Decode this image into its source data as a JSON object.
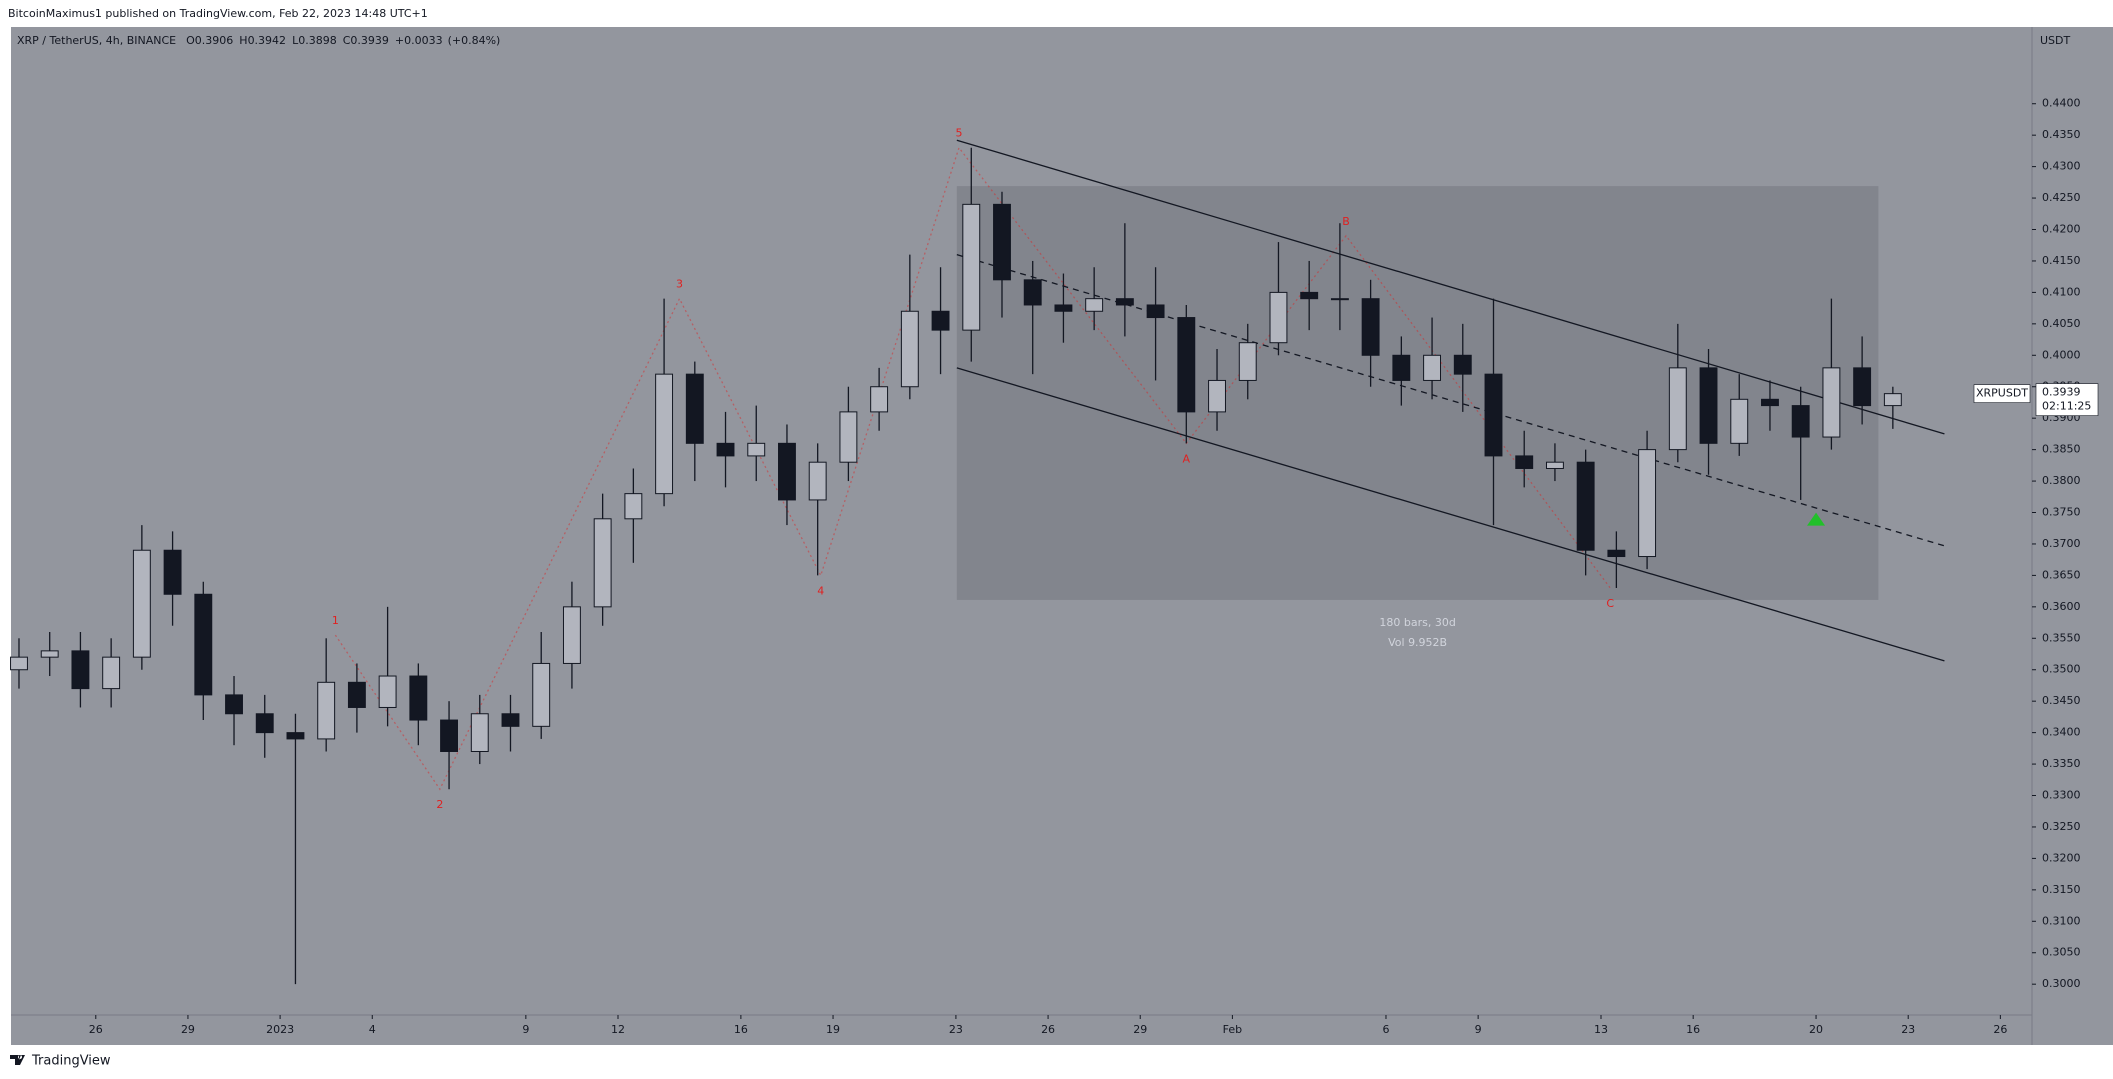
{
  "header": {
    "published": "BitcoinMaximus1 published on TradingView.com, Feb 22, 2023 14:48 UTC+1"
  },
  "chart_data": {
    "type": "candlestick",
    "title": "XRP / TetherUS, 4h, BINANCE",
    "ohlc_legend": [
      {
        "label": "O",
        "value": 0.3906
      },
      {
        "label": "H",
        "value": 0.3942
      },
      {
        "label": "L",
        "value": 0.3898
      },
      {
        "label": "C",
        "value": 0.3939
      }
    ],
    "change": {
      "value": 0.0033,
      "label": "+0.0033"
    },
    "change_pct": {
      "value": 0.84,
      "label": "(+0.84%)"
    },
    "y_unit": "USDT",
    "symbol": "XRPUSDT",
    "last_price": 0.3939,
    "countdown": "02:11:25",
    "up_color": "#b2b5be",
    "down_color": "#131722",
    "wick_color": "#131722",
    "background": "#93969e",
    "x": [
      -2.5,
      -1.5,
      -0.5,
      0.5,
      1.5,
      2.5,
      3.5,
      4.5,
      5.5,
      6.5,
      7.5,
      8.5,
      9.5,
      10.5,
      11.5,
      12.5,
      13.5,
      14.5,
      15.5,
      16.5,
      17.5,
      18.5,
      19.5,
      20.5,
      21.5,
      22.5,
      23.5,
      24.5,
      25.5,
      26.5,
      27.5,
      28.5,
      29.5,
      30.5,
      31.5,
      32.5,
      33.5,
      34.5,
      35.5,
      36.5,
      37.5,
      38.5,
      39.5,
      40.5,
      41.5,
      42.5,
      43.5,
      44.5,
      45.5,
      46.5,
      47.5,
      48.5,
      49.5,
      50.5,
      51.5,
      52.5,
      53.5,
      54.5,
      55.5,
      56.5,
      57.5,
      58.5
    ],
    "open": [
      0.35,
      0.352,
      0.353,
      0.347,
      0.352,
      0.369,
      0.362,
      0.346,
      0.343,
      0.34,
      0.339,
      0.348,
      0.344,
      0.349,
      0.342,
      0.337,
      0.343,
      0.341,
      0.351,
      0.36,
      0.374,
      0.378,
      0.397,
      0.386,
      0.384,
      0.386,
      0.377,
      0.383,
      0.391,
      0.395,
      0.407,
      0.404,
      0.424,
      0.412,
      0.408,
      0.407,
      0.409,
      0.408,
      0.406,
      0.391,
      0.396,
      0.402,
      0.41,
      0.409,
      0.409,
      0.4,
      0.396,
      0.4,
      0.397,
      0.384,
      0.382,
      0.383,
      0.369,
      0.368,
      0.385,
      0.398,
      0.386,
      0.393,
      0.392,
      0.387,
      0.398,
      0.392
    ],
    "high": [
      0.355,
      0.356,
      0.356,
      0.355,
      0.373,
      0.372,
      0.364,
      0.349,
      0.346,
      0.343,
      0.355,
      0.351,
      0.36,
      0.351,
      0.345,
      0.346,
      0.346,
      0.356,
      0.364,
      0.378,
      0.382,
      0.409,
      0.399,
      0.391,
      0.392,
      0.389,
      0.386,
      0.395,
      0.398,
      0.416,
      0.414,
      0.433,
      0.426,
      0.415,
      0.413,
      0.414,
      0.421,
      0.414,
      0.408,
      0.401,
      0.405,
      0.418,
      0.415,
      0.421,
      0.412,
      0.403,
      0.406,
      0.405,
      0.409,
      0.388,
      0.386,
      0.385,
      0.372,
      0.388,
      0.405,
      0.401,
      0.397,
      0.396,
      0.395,
      0.409,
      0.403,
      0.395
    ],
    "low": [
      0.347,
      0.349,
      0.344,
      0.344,
      0.35,
      0.357,
      0.342,
      0.338,
      0.336,
      0.3,
      0.337,
      0.34,
      0.341,
      0.338,
      0.331,
      0.335,
      0.337,
      0.339,
      0.347,
      0.357,
      0.367,
      0.376,
      0.38,
      0.379,
      0.38,
      0.373,
      0.365,
      0.38,
      0.388,
      0.393,
      0.397,
      0.399,
      0.406,
      0.397,
      0.402,
      0.404,
      0.403,
      0.396,
      0.386,
      0.388,
      0.393,
      0.4,
      0.404,
      0.404,
      0.395,
      0.392,
      0.393,
      0.391,
      0.373,
      0.379,
      0.38,
      0.365,
      0.363,
      0.366,
      0.383,
      0.381,
      0.384,
      0.388,
      0.377,
      0.385,
      0.389,
      0.3883
    ],
    "close": [
      0.352,
      0.353,
      0.347,
      0.352,
      0.369,
      0.362,
      0.346,
      0.343,
      0.34,
      0.339,
      0.348,
      0.344,
      0.349,
      0.342,
      0.337,
      0.343,
      0.341,
      0.351,
      0.36,
      0.374,
      0.378,
      0.397,
      0.386,
      0.384,
      0.386,
      0.377,
      0.383,
      0.391,
      0.395,
      0.407,
      0.404,
      0.424,
      0.412,
      0.408,
      0.407,
      0.409,
      0.408,
      0.406,
      0.391,
      0.396,
      0.402,
      0.41,
      0.409,
      0.409,
      0.4,
      0.396,
      0.4,
      0.397,
      0.384,
      0.382,
      0.383,
      0.369,
      0.368,
      0.385,
      0.398,
      0.386,
      0.393,
      0.392,
      0.387,
      0.398,
      0.392,
      0.3939
    ],
    "xlim": [
      -2.76,
      63.03
    ],
    "xticks": [
      {
        "value": 0,
        "label": "26"
      },
      {
        "value": 3,
        "label": "29"
      },
      {
        "value": 6,
        "label": "2023"
      },
      {
        "value": 9,
        "label": "4"
      },
      {
        "value": 14,
        "label": "9"
      },
      {
        "value": 17,
        "label": "12"
      },
      {
        "value": 21,
        "label": "16"
      },
      {
        "value": 24,
        "label": "19"
      },
      {
        "value": 28,
        "label": "23"
      },
      {
        "value": 31,
        "label": "26"
      },
      {
        "value": 34,
        "label": "29"
      },
      {
        "value": 37,
        "label": "Feb"
      },
      {
        "value": 42,
        "label": "6"
      },
      {
        "value": 45,
        "label": "9"
      },
      {
        "value": 49,
        "label": "13"
      },
      {
        "value": 52,
        "label": "16"
      },
      {
        "value": 56,
        "label": "20"
      },
      {
        "value": 59,
        "label": "23"
      },
      {
        "value": 62,
        "label": "26"
      }
    ],
    "ylim": [
      0.2951,
      0.4522
    ],
    "yticks": [
      {
        "value": 0.3,
        "label": "0.3000"
      },
      {
        "value": 0.305,
        "label": "0.3050"
      },
      {
        "value": 0.31,
        "label": "0.3100"
      },
      {
        "value": 0.315,
        "label": "0.3150"
      },
      {
        "value": 0.32,
        "label": "0.3200"
      },
      {
        "value": 0.325,
        "label": "0.3250"
      },
      {
        "value": 0.33,
        "label": "0.3300"
      },
      {
        "value": 0.335,
        "label": "0.3350"
      },
      {
        "value": 0.34,
        "label": "0.3400"
      },
      {
        "value": 0.345,
        "label": "0.3450"
      },
      {
        "value": 0.35,
        "label": "0.3500"
      },
      {
        "value": 0.355,
        "label": "0.3550"
      },
      {
        "value": 0.36,
        "label": "0.3600"
      },
      {
        "value": 0.365,
        "label": "0.3650"
      },
      {
        "value": 0.37,
        "label": "0.3700"
      },
      {
        "value": 0.375,
        "label": "0.3750"
      },
      {
        "value": 0.38,
        "label": "0.3800"
      },
      {
        "value": 0.385,
        "label": "0.3850"
      },
      {
        "value": 0.39,
        "label": "0.3900"
      },
      {
        "value": 0.395,
        "label": "0.3950"
      },
      {
        "value": 0.4,
        "label": "0.4000"
      },
      {
        "value": 0.405,
        "label": "0.4050"
      },
      {
        "value": 0.41,
        "label": "0.4100"
      },
      {
        "value": 0.415,
        "label": "0.4150"
      },
      {
        "value": 0.42,
        "label": "0.4200"
      },
      {
        "value": 0.425,
        "label": "0.4250"
      },
      {
        "value": 0.43,
        "label": "0.4300"
      },
      {
        "value": 0.435,
        "label": "0.4350"
      },
      {
        "value": 0.44,
        "label": "0.4400"
      }
    ],
    "drawings": {
      "channel_upper": {
        "x": [
          28.03,
          60.18
        ],
        "y": [
          0.4342,
          0.3875
        ]
      },
      "channel_mid": {
        "x": [
          28.03,
          60.18
        ],
        "y": [
          0.416,
          0.3697
        ]
      },
      "channel_lower": {
        "x": [
          28.03,
          60.18
        ],
        "y": [
          0.398,
          0.3514
        ]
      },
      "range_box": {
        "x": [
          28.03,
          58.03
        ],
        "y": [
          0.3611,
          0.4269
        ],
        "bars_label": "180 bars, 30d",
        "volume_label": "Vol 9.952B"
      },
      "waves": {
        "color": "#e02020",
        "labels": [
          "1",
          "2",
          "3",
          "4",
          "5",
          "A",
          "B",
          "C"
        ],
        "x": [
          7.8,
          11.2,
          19.0,
          23.6,
          28.1,
          35.5,
          40.7,
          49.3
        ],
        "y": [
          0.3555,
          0.331,
          0.409,
          0.365,
          0.433,
          0.386,
          0.419,
          0.363
        ]
      },
      "marker": {
        "x": 56.0,
        "y": 0.3737,
        "color": "#22c02a"
      }
    }
  },
  "footer": {
    "brand": "TradingView"
  }
}
